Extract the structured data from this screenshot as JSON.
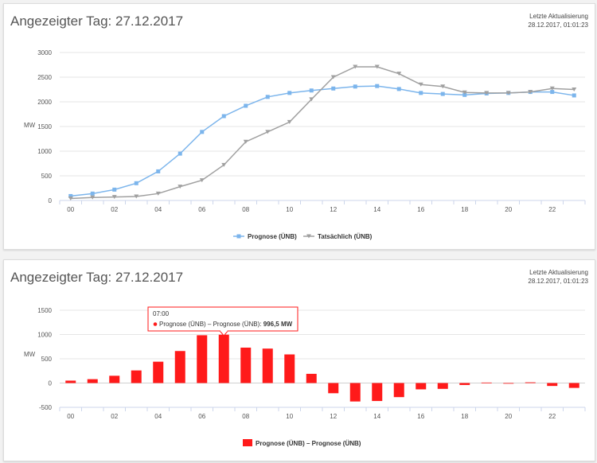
{
  "panels": [
    {
      "title": "Angezeigter Tag: 27.12.2017",
      "update_label": "Letzte Aktualisierung",
      "update_time": "28.12.2017, 01:01:23"
    },
    {
      "title": "Angezeigter Tag: 27.12.2017",
      "update_label": "Letzte Aktualisierung",
      "update_time": "28.12.2017, 01:01:23"
    }
  ],
  "tooltip": {
    "time": "07:00",
    "series": "Prognose (ÜNB) – Prognose (ÜNB):",
    "value": "996,5 MW"
  },
  "colors": {
    "prognose": "#7cb5ec",
    "tatsaechlich": "#a0a0a0",
    "diff": "#ff1a1a"
  },
  "chart_data": [
    {
      "type": "line",
      "ylabel": "MW",
      "ylim": [
        0,
        3000
      ],
      "yticks": [
        0,
        500,
        1000,
        1500,
        2000,
        2500,
        3000
      ],
      "xticks": [
        "00",
        "02",
        "04",
        "06",
        "08",
        "10",
        "12",
        "14",
        "16",
        "18",
        "20",
        "22"
      ],
      "x": [
        0,
        1,
        2,
        3,
        4,
        5,
        6,
        7,
        8,
        9,
        10,
        11,
        12,
        13,
        14,
        15,
        16,
        17,
        18,
        19,
        20,
        21,
        22,
        23
      ],
      "grid": true,
      "legend": "bottom-center",
      "series": [
        {
          "name": "Prognose (ÜNB)",
          "values": [
            90,
            140,
            220,
            350,
            590,
            950,
            1390,
            1710,
            1920,
            2100,
            2180,
            2230,
            2270,
            2310,
            2320,
            2260,
            2180,
            2160,
            2140,
            2170,
            2180,
            2200,
            2200,
            2130
          ]
        },
        {
          "name": "Tatsächlich (ÜNB)",
          "values": [
            40,
            60,
            70,
            80,
            140,
            280,
            410,
            720,
            1190,
            1390,
            1590,
            2050,
            2500,
            2710,
            2710,
            2570,
            2350,
            2310,
            2190,
            2180,
            2180,
            2200,
            2270,
            2250
          ]
        }
      ]
    },
    {
      "type": "bar",
      "ylabel": "MW",
      "ylim": [
        -500,
        1500
      ],
      "yticks": [
        -500,
        0,
        500,
        1000,
        1500
      ],
      "xticks": [
        "00",
        "02",
        "04",
        "06",
        "08",
        "10",
        "12",
        "14",
        "16",
        "18",
        "20",
        "22"
      ],
      "x": [
        0,
        1,
        2,
        3,
        4,
        5,
        6,
        7,
        8,
        9,
        10,
        11,
        12,
        13,
        14,
        15,
        16,
        17,
        18,
        19,
        20,
        21,
        22,
        23
      ],
      "grid": true,
      "legend": "bottom-center",
      "series": [
        {
          "name": "Prognose (ÜNB) – Prognose (ÜNB)",
          "values": [
            50,
            80,
            150,
            260,
            440,
            660,
            985,
            996.5,
            730,
            710,
            590,
            190,
            -210,
            -380,
            -370,
            -290,
            -130,
            -120,
            -40,
            10,
            0,
            15,
            -60,
            -100
          ]
        }
      ]
    }
  ]
}
